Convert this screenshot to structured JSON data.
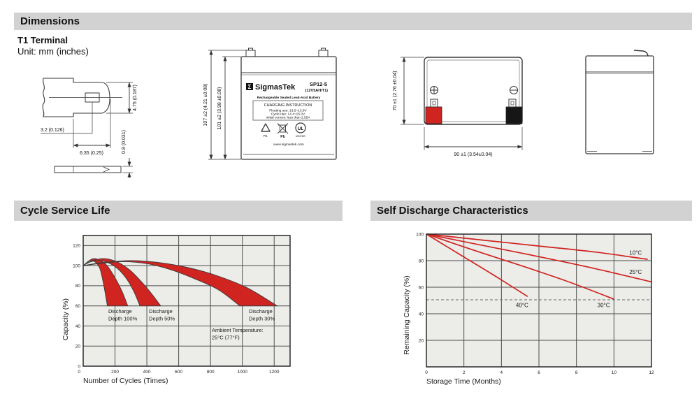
{
  "header": {
    "title": "Dimensions"
  },
  "terminal_info": {
    "type": "T1 Terminal",
    "unit": "Unit: mm (inches)"
  },
  "drawings": {
    "terminal_detail": {
      "tab_height": "4.75 (0.187)",
      "hole_offset": "3.2 (0.126)",
      "tab_width": "6.35 (0.25)",
      "tab_thickness": "0.8 (0.031)"
    },
    "front_view": {
      "total_height": "107 ±2 (4.21 ±0.08)",
      "container_height": "101 ±2 (3.98 ±0.08)"
    },
    "top_view": {
      "width": "70 ±1 (2.76 ±0.04)",
      "length": "90 ±1 (3.54±0.04)"
    },
    "battery_label": {
      "logo_sigma": "Σ",
      "brand": "SigmasTek",
      "model": "SP12-5",
      "rating": "(12V5AH/T1)",
      "subtitle": "Rechargeable Sealed Lead-Acid Battery",
      "charging_title": "CHARGING INSTRUCTION",
      "charging_line1": "Floating use: 13.5~13.8V",
      "charging_line2": "Cycle use: 14.4~15.0V",
      "charging_line3": "Initial current: less than 2.55A",
      "recycle_pb": "Pb.",
      "bin_pb": "Pb",
      "ul_text": "UL",
      "ul_code": "MH47529",
      "website": "www.sigmastek.com"
    }
  },
  "colors": {
    "red": "#d02420",
    "plot_bg": "#ecece9",
    "grid": "#4d4d4d",
    "border": "#2a2a2a",
    "bar_bg": "#d2d2d2",
    "dashed": "#666666",
    "text": "#111111"
  },
  "chart_data": [
    {
      "type": "area",
      "title": "Cycle Service Life",
      "xlabel": "Number of Cycles (Times)",
      "ylabel": "Capacity (%)",
      "xlim": [
        0,
        1300
      ],
      "ylim": [
        0,
        130
      ],
      "x_ticks": [
        200,
        400,
        600,
        800,
        1000,
        1200
      ],
      "y_ticks": [
        0,
        20,
        40,
        60,
        80,
        100,
        120
      ],
      "origin_label": "0",
      "grid": true,
      "legend_position": "none",
      "bands": [
        {
          "name": "Discharge Depth 100%",
          "upper": [
            [
              0,
              100
            ],
            [
              30,
              104
            ],
            [
              65,
              107
            ],
            [
              110,
              105
            ],
            [
              150,
              100
            ],
            [
              200,
              88
            ],
            [
              245,
              74
            ],
            [
              280,
              60
            ]
          ],
          "lower": [
            [
              0,
              100
            ],
            [
              25,
              103
            ],
            [
              50,
              105
            ],
            [
              80,
              103
            ],
            [
              105,
              97
            ],
            [
              125,
              84
            ],
            [
              140,
              71
            ],
            [
              152,
              60
            ]
          ]
        },
        {
          "name": "Discharge Depth 50%",
          "upper": [
            [
              0,
              100
            ],
            [
              60,
              105
            ],
            [
              130,
              107
            ],
            [
              210,
              104
            ],
            [
              290,
              96
            ],
            [
              360,
              85
            ],
            [
              430,
              72
            ],
            [
              487,
              60
            ]
          ],
          "lower": [
            [
              0,
              100
            ],
            [
              50,
              104
            ],
            [
              110,
              105
            ],
            [
              170,
              102
            ],
            [
              230,
              95
            ],
            [
              285,
              84
            ],
            [
              325,
              72
            ],
            [
              356,
              60
            ]
          ]
        },
        {
          "name": "Discharge Depth 30%",
          "upper": [
            [
              0,
              100
            ],
            [
              120,
              103
            ],
            [
              300,
              105
            ],
            [
              480,
              103
            ],
            [
              660,
              98
            ],
            [
              840,
              90
            ],
            [
              1030,
              78
            ],
            [
              1219,
              60
            ]
          ],
          "lower": [
            [
              0,
              100
            ],
            [
              100,
              102
            ],
            [
              250,
              104
            ],
            [
              400,
              102
            ],
            [
              550,
              96
            ],
            [
              700,
              87
            ],
            [
              850,
              76
            ],
            [
              984,
              60
            ]
          ]
        }
      ],
      "annotations": [
        {
          "lines": [
            "Discharge",
            "Depth 100%"
          ],
          "x": 158,
          "y": 53,
          "anchor": "start"
        },
        {
          "lines": [
            "Discharge",
            "Depth 50%"
          ],
          "x": 413,
          "y": 53,
          "anchor": "start"
        },
        {
          "lines": [
            "Discharge",
            "Depth 30%"
          ],
          "x": 1041,
          "y": 53,
          "anchor": "start"
        },
        {
          "lines": [
            "Ambient Temperature:",
            "25°C (77°F)"
          ],
          "x": 808,
          "y": 34,
          "anchor": "start"
        }
      ]
    },
    {
      "type": "line",
      "title": "Self Discharge Characteristics",
      "xlabel": "Storage Time (Months)",
      "ylabel": "Remaining Capacity (%)",
      "xlim": [
        0,
        12
      ],
      "ylim": [
        0,
        100
      ],
      "x_ticks": [
        0,
        2,
        4,
        6,
        8,
        10,
        12
      ],
      "y_ticks": [
        20,
        40,
        60,
        80,
        100
      ],
      "grid": true,
      "legend_position": "inline-labels",
      "dashed_line_y": 50.5,
      "series": [
        {
          "name": "10°C",
          "points": [
            [
              0,
              100
            ],
            [
              3,
              95.5
            ],
            [
              6,
              91
            ],
            [
              9,
              86.5
            ],
            [
              11.8,
              81
            ]
          ],
          "label_x": 11.15,
          "label_y": 84.5
        },
        {
          "name": "25°C",
          "points": [
            [
              0,
              100
            ],
            [
              3,
              91.5
            ],
            [
              6,
              83
            ],
            [
              9,
              74
            ],
            [
              12,
              64
            ]
          ],
          "label_x": 11.15,
          "label_y": 70
        },
        {
          "name": "30°C",
          "points": [
            [
              0,
              100
            ],
            [
              2.5,
              88
            ],
            [
              5,
              76.5
            ],
            [
              7.5,
              64.5
            ],
            [
              10,
              51
            ]
          ],
          "label_x": 9.45,
          "label_y": 45
        },
        {
          "name": "40°C",
          "points": [
            [
              0,
              100
            ],
            [
              1.8,
              84.5
            ],
            [
              3.6,
              69
            ],
            [
              5.4,
              53
            ]
          ],
          "label_x": 5.1,
          "label_y": 45
        }
      ]
    }
  ]
}
